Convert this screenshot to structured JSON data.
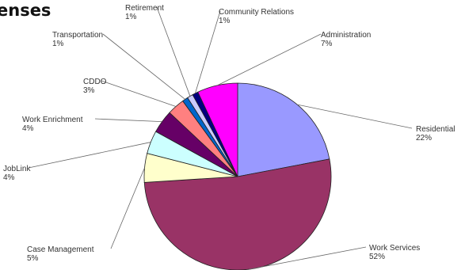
{
  "chart_data": {
    "type": "pie",
    "title": "enses",
    "slices": [
      {
        "label": "Residential",
        "value": 22,
        "value_label": "22%",
        "color": "#9999ff"
      },
      {
        "label": "Work Services",
        "value": 52,
        "value_label": "52%",
        "color": "#993366"
      },
      {
        "label": "Case Management",
        "value": 5,
        "value_label": "5%",
        "color": "#ffffcc"
      },
      {
        "label": "JobLink",
        "value": 4,
        "value_label": "4%",
        "color": "#ccffff"
      },
      {
        "label": "Work Enrichment",
        "value": 4,
        "value_label": "4%",
        "color": "#660066"
      },
      {
        "label": "CDDO",
        "value": 3,
        "value_label": "3%",
        "color": "#ff8080"
      },
      {
        "label": "Transportation",
        "value": 1,
        "value_label": "1%",
        "color": "#0066cc"
      },
      {
        "label": "Retirement",
        "value": 1,
        "value_label": "1%",
        "color": "#ccccff"
      },
      {
        "label": "Community Relations",
        "value": 1,
        "value_label": "1%",
        "color": "#000080"
      },
      {
        "label": "Administration",
        "value": 7,
        "value_label": "7%",
        "color": "#ff00ff"
      }
    ]
  }
}
